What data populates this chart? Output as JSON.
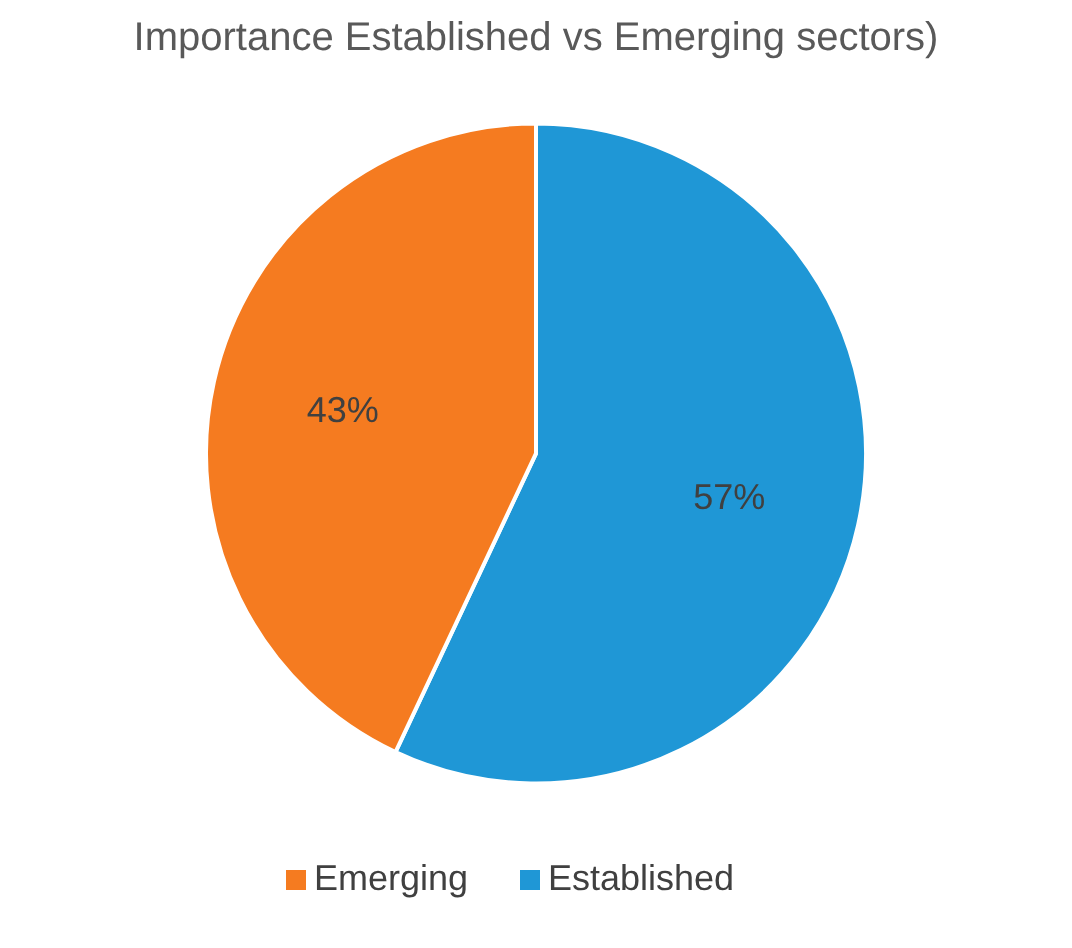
{
  "chart_data": {
    "type": "pie",
    "title": "Importance Established vs Emerging sectors)",
    "categories": [
      "Established",
      "Emerging"
    ],
    "values": [
      57,
      43
    ],
    "colors": [
      "#1f97d6",
      "#f57b20"
    ],
    "value_labels": [
      "57%",
      "43%"
    ],
    "legend": "bottom"
  }
}
